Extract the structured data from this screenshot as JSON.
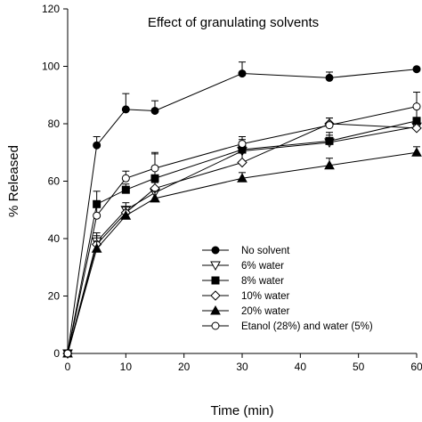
{
  "chart_data": {
    "type": "line",
    "title": "Effect of granulating solvents",
    "xlabel": "Time (min)",
    "ylabel": "% Released",
    "xlim": [
      0,
      60
    ],
    "ylim": [
      0,
      120
    ],
    "x_ticks": [
      0,
      10,
      20,
      30,
      40,
      50,
      60
    ],
    "y_ticks": [
      0,
      20,
      40,
      60,
      80,
      100,
      120
    ],
    "grid": false,
    "legend_position": "bottom-right",
    "x": [
      0,
      5,
      10,
      15,
      30,
      45,
      60
    ],
    "series": [
      {
        "name": "No solvent",
        "marker": "filled-circle",
        "values": [
          0,
          72.5,
          85,
          84.5,
          97.5,
          96,
          99
        ],
        "errors": [
          0,
          3,
          5.5,
          3.5,
          4,
          2,
          0
        ]
      },
      {
        "name": "6% water",
        "marker": "open-triangle-down",
        "values": [
          0,
          39,
          50,
          56,
          70.5,
          73.5,
          79
        ],
        "errors": [
          0,
          3,
          2.5,
          3.5,
          3,
          2.5,
          2
        ]
      },
      {
        "name": "8% water",
        "marker": "filled-square",
        "values": [
          0,
          52,
          57,
          61,
          71,
          74,
          81
        ],
        "errors": [
          0,
          4.5,
          2,
          9,
          3.5,
          3,
          5
        ]
      },
      {
        "name": "10% water",
        "marker": "open-diamond",
        "values": [
          0,
          38,
          49,
          57.5,
          66.5,
          80,
          78.5
        ],
        "errors": [
          0,
          3,
          2,
          3,
          3.5,
          2,
          2
        ]
      },
      {
        "name": "20% water",
        "marker": "filled-triangle-up",
        "values": [
          0,
          36.5,
          48,
          54,
          61,
          65.5,
          70
        ],
        "errors": [
          0,
          2.5,
          3,
          2.5,
          2,
          2.5,
          2
        ]
      },
      {
        "name": "Etanol (28%) and water (5%)",
        "marker": "open-circle",
        "values": [
          0,
          48,
          61,
          64.5,
          73,
          79.5,
          86
        ],
        "errors": [
          0,
          4,
          2.5,
          5,
          2.5,
          2.5,
          5
        ]
      }
    ]
  }
}
